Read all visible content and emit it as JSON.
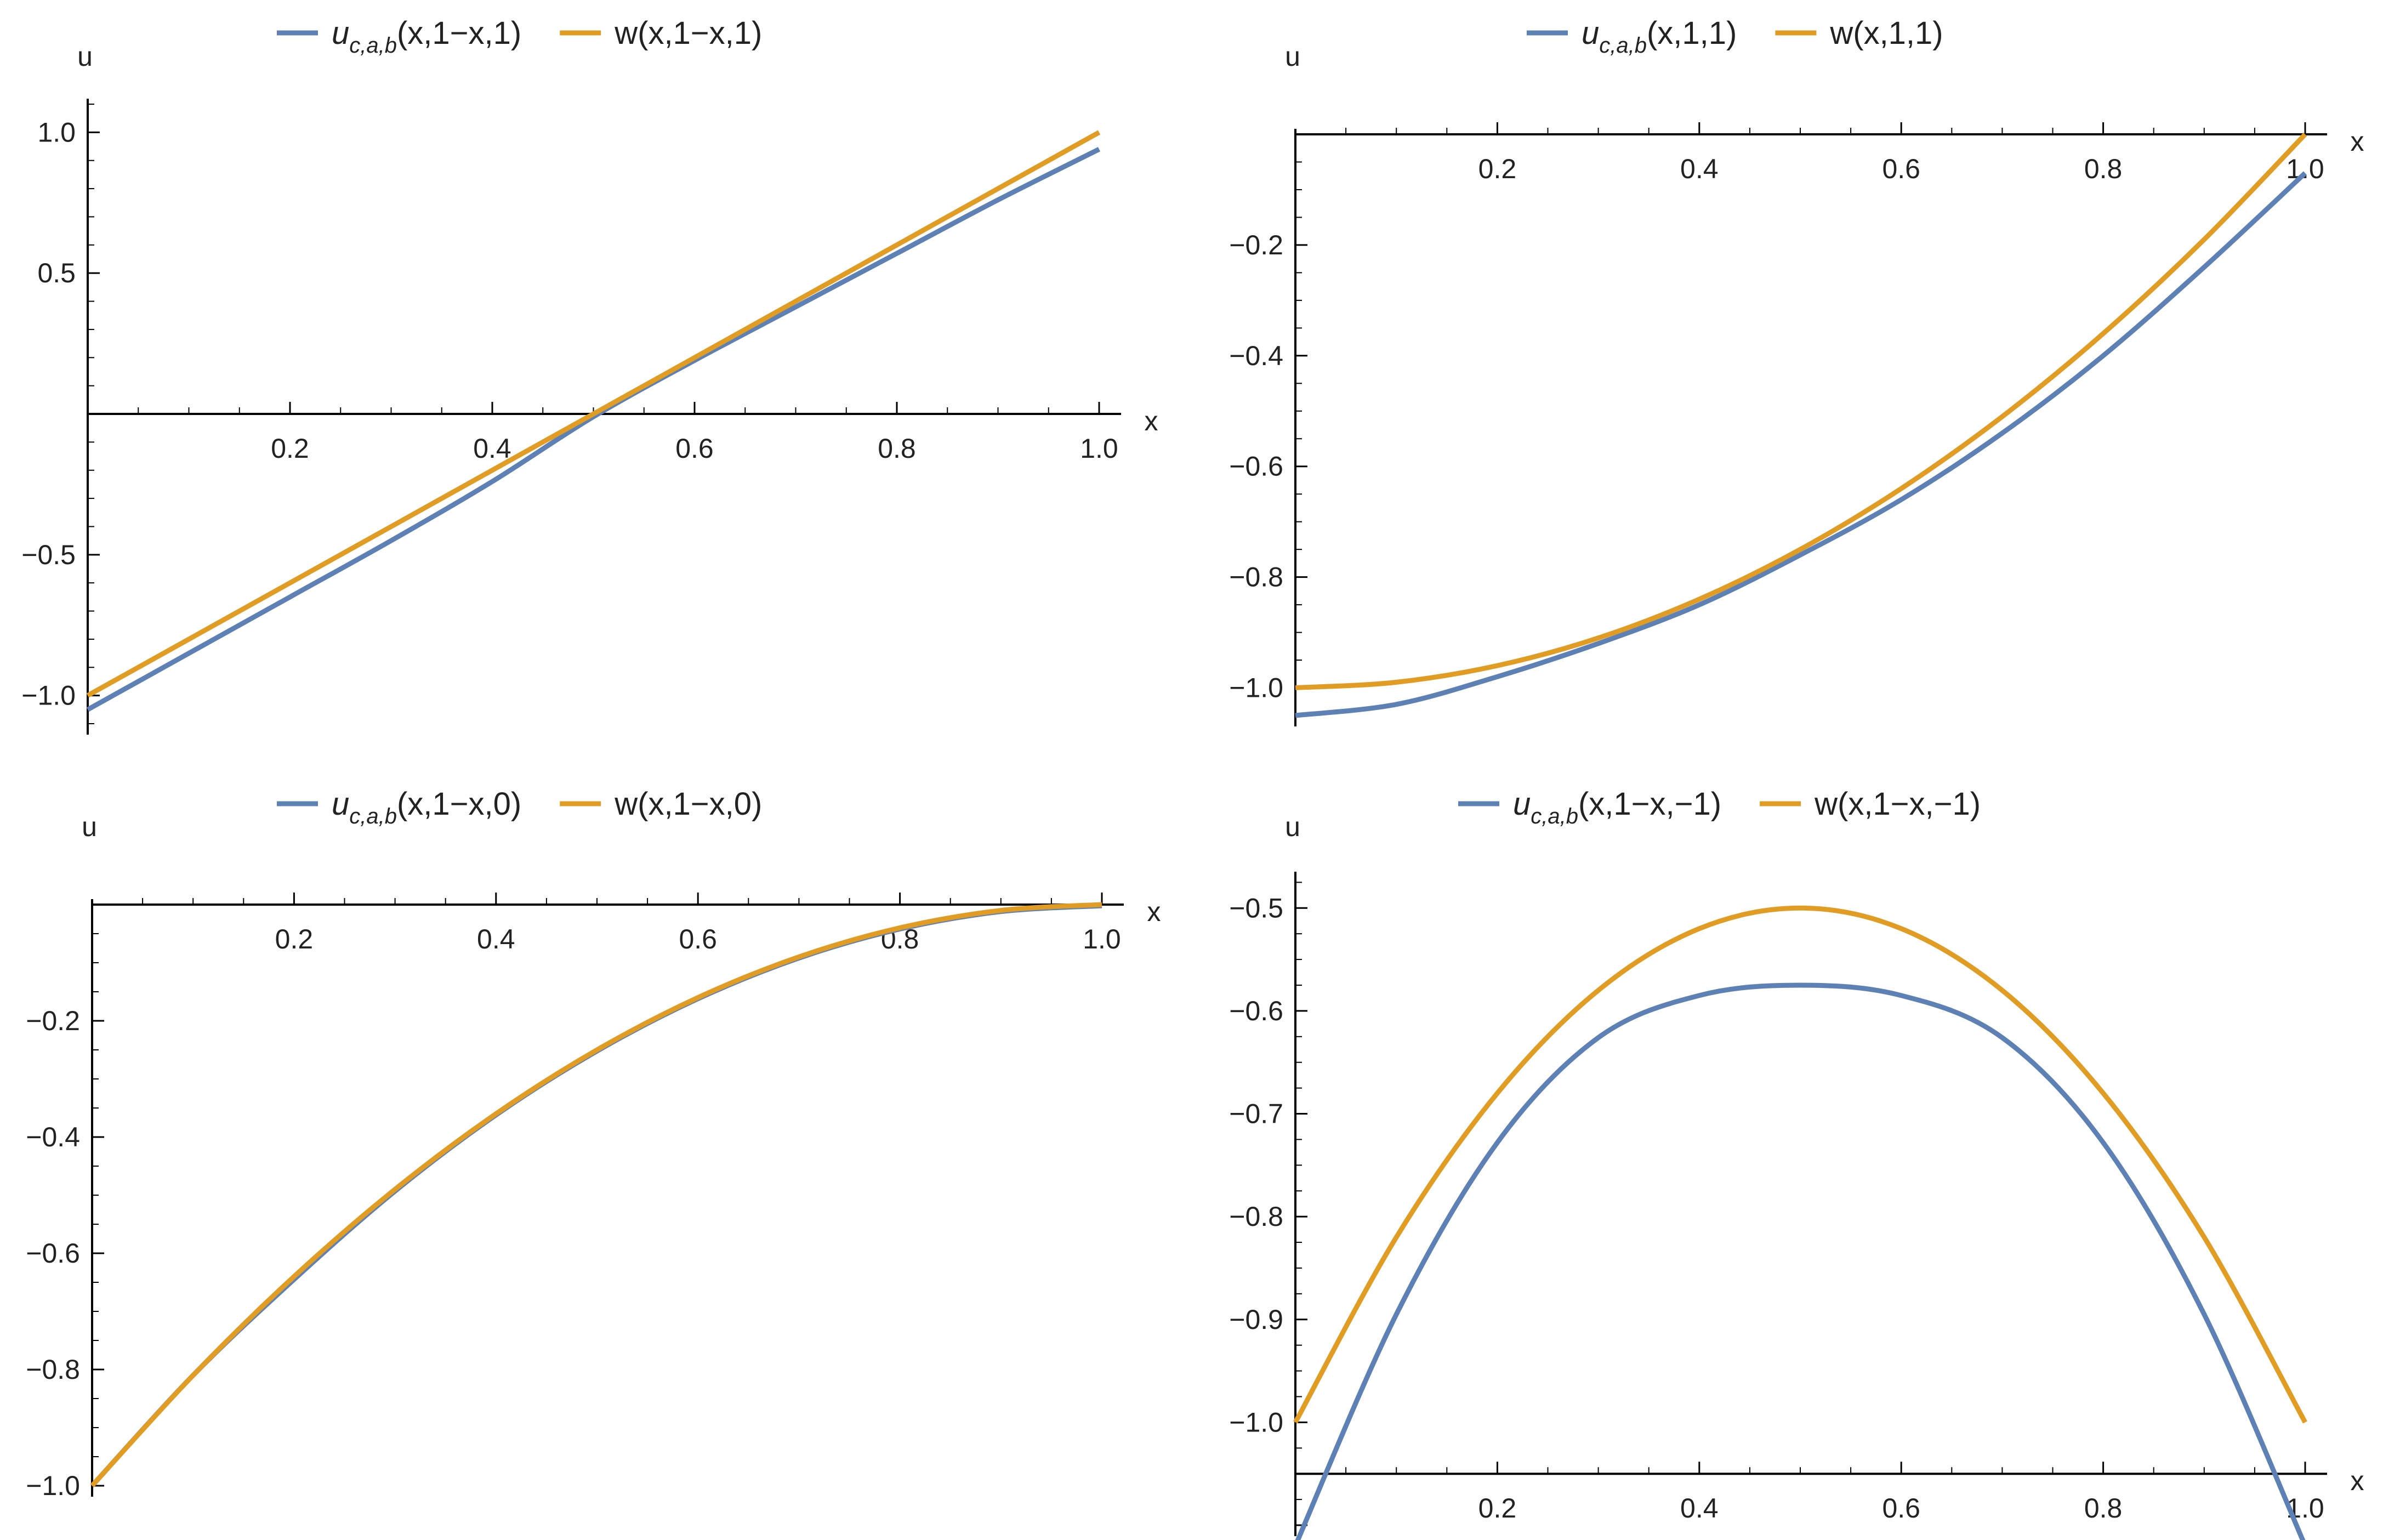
{
  "chart_data": [
    {
      "type": "line",
      "legend_position": "top",
      "xlabel": "x",
      "ylabel": "u",
      "xlim": [
        0,
        1
      ],
      "ylim": [
        -1.1,
        1.1
      ],
      "xticks": [
        "0.2",
        "0.4",
        "0.6",
        "0.8",
        "1.0"
      ],
      "yticks": [
        "−1.0",
        "−0.5",
        "0.5",
        "1.0"
      ],
      "x": [
        0,
        0.1,
        0.2,
        0.3,
        0.4,
        0.5,
        0.6,
        0.7,
        0.8,
        0.9,
        1.0
      ],
      "series": [
        {
          "name": "u_{c,a,b}(x,1−x,1)",
          "legend_base": "u",
          "legend_sub": "c,a,b",
          "legend_args": "(x,1−x,1)",
          "color": "#5E81B5",
          "values": [
            -1.05,
            -0.85,
            -0.65,
            -0.45,
            -0.24,
            -0.01,
            0.19,
            0.38,
            0.57,
            0.76,
            0.94
          ]
        },
        {
          "name": "w(x,1−x,1)",
          "legend_base": "w",
          "legend_sub": "",
          "legend_args": "(x,1−x,1)",
          "color": "#E19C24",
          "values": [
            -1.0,
            -0.8,
            -0.6,
            -0.4,
            -0.2,
            0.0,
            0.2,
            0.4,
            0.6,
            0.8,
            1.0
          ]
        }
      ]
    },
    {
      "type": "line",
      "legend_position": "top",
      "xlabel": "x",
      "ylabel": "u",
      "xlim": [
        0,
        1
      ],
      "ylim": [
        -1.05,
        0.0
      ],
      "xticks": [
        "0.2",
        "0.4",
        "0.6",
        "0.8",
        "1.0"
      ],
      "yticks": [
        "−0.2",
        "−0.4",
        "−0.6",
        "−0.8",
        "−1.0"
      ],
      "x": [
        0,
        0.1,
        0.2,
        0.3,
        0.4,
        0.5,
        0.6,
        0.7,
        0.8,
        0.9,
        1.0
      ],
      "series": [
        {
          "name": "u_{c,a,b}(x,1,1)",
          "legend_base": "u",
          "legend_sub": "c,a,b",
          "legend_args": "(x,1,1)",
          "color": "#5E81B5",
          "values": [
            -1.05,
            -1.03,
            -0.98,
            -0.92,
            -0.85,
            -0.76,
            -0.66,
            -0.54,
            -0.4,
            -0.24,
            -0.07
          ]
        },
        {
          "name": "w(x,1,1)",
          "legend_base": "w",
          "legend_sub": "",
          "legend_args": "(x,1,1)",
          "color": "#E19C24",
          "values": [
            -1.0,
            -0.99,
            -0.96,
            -0.91,
            -0.84,
            -0.75,
            -0.64,
            -0.51,
            -0.36,
            -0.19,
            0.0
          ]
        }
      ]
    },
    {
      "type": "line",
      "legend_position": "top",
      "xlabel": "x",
      "ylabel": "u",
      "xlim": [
        0,
        1
      ],
      "ylim": [
        -1.0,
        0.0
      ],
      "xticks": [
        "0.2",
        "0.4",
        "0.6",
        "0.8",
        "1.0"
      ],
      "yticks": [
        "−0.2",
        "−0.4",
        "−0.6",
        "−0.8",
        "−1.0"
      ],
      "x": [
        0,
        0.1,
        0.2,
        0.3,
        0.4,
        0.5,
        0.6,
        0.7,
        0.8,
        0.9,
        1.0
      ],
      "series": [
        {
          "name": "u_{c,a,b}(x,1−x,0)",
          "legend_base": "u",
          "legend_sub": "c,a,b",
          "legend_args": "(x,1−x,0)",
          "color": "#5E81B5",
          "values": [
            -1.0,
            -0.81,
            -0.645,
            -0.493,
            -0.362,
            -0.252,
            -0.162,
            -0.092,
            -0.042,
            -0.012,
            -0.002
          ]
        },
        {
          "name": "w(x,1−x,0)",
          "legend_base": "w",
          "legend_sub": "",
          "legend_args": "(x,1−x,0)",
          "color": "#E19C24",
          "values": [
            -1.0,
            -0.81,
            -0.64,
            -0.49,
            -0.36,
            -0.25,
            -0.16,
            -0.09,
            -0.04,
            -0.01,
            0.0
          ]
        }
      ]
    },
    {
      "type": "line",
      "legend_position": "top",
      "xlabel": "x",
      "ylabel": "u",
      "xlim": [
        0,
        1
      ],
      "ylim": [
        -1.1,
        -0.47
      ],
      "xticks": [
        "0.2",
        "0.4",
        "0.6",
        "0.8",
        "1.0"
      ],
      "yticks": [
        "−0.5",
        "−0.6",
        "−0.7",
        "−0.8",
        "−0.9",
        "−1.0"
      ],
      "x": [
        0,
        0.1,
        0.2,
        0.3,
        0.4,
        0.5,
        0.6,
        0.7,
        0.8,
        0.9,
        1.0
      ],
      "series": [
        {
          "name": "u_{c,a,b}(x,1−x,−1)",
          "legend_base": "u",
          "legend_sub": "c,a,b",
          "legend_args": "(x,1−x,−1)",
          "color": "#5E81B5",
          "values": [
            -1.12,
            -0.895,
            -0.728,
            -0.626,
            -0.585,
            -0.575,
            -0.585,
            -0.626,
            -0.728,
            -0.895,
            -1.12
          ]
        },
        {
          "name": "w(x,1−x,−1)",
          "legend_base": "w",
          "legend_sub": "",
          "legend_args": "(x,1−x,−1)",
          "color": "#E19C24",
          "values": [
            -1.0,
            -0.82,
            -0.68,
            -0.58,
            -0.52,
            -0.5,
            -0.52,
            -0.58,
            -0.68,
            -0.82,
            -1.0
          ]
        }
      ]
    }
  ]
}
